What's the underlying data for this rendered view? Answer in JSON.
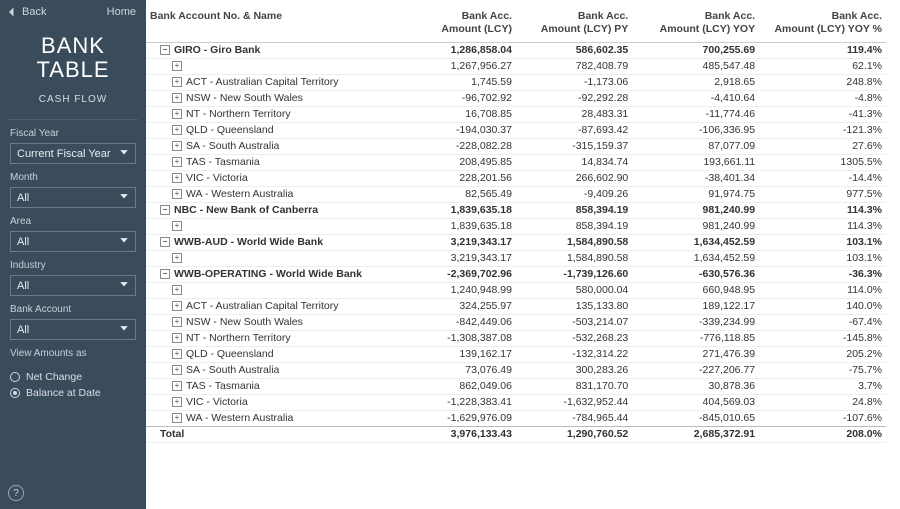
{
  "colors": {
    "sidebar_bg": "#3a4b5c"
  },
  "sidebar": {
    "back": "Back",
    "home": "Home",
    "title_line1": "BANK",
    "title_line2": "TABLE",
    "subtitle": "CASH FLOW",
    "filters": [
      {
        "label": "Fiscal Year",
        "value": "Current Fiscal Year"
      },
      {
        "label": "Month",
        "value": "All"
      },
      {
        "label": "Area",
        "value": "All"
      },
      {
        "label": "Industry",
        "value": "All"
      },
      {
        "label": "Bank Account",
        "value": "All"
      }
    ],
    "view_label": "View Amounts as",
    "view_options": [
      "Net Change",
      "Balance at Date"
    ],
    "view_selected": 1,
    "help": "?"
  },
  "table": {
    "columns": [
      "Bank Account No. & Name",
      "Bank Acc. Amount (LCY)",
      "Bank Acc. Amount (LCY) PY",
      "Bank Acc. Amount (LCY) YOY",
      "Bank Acc. Amount (LCY) YOY %"
    ],
    "col_widths": [
      "240px",
      "110px",
      "110px",
      "120px",
      "120px"
    ],
    "rows": [
      {
        "type": "section",
        "ctrl": "−",
        "name": "GIRO - Giro Bank",
        "v": [
          "1,286,858.04",
          "586,602.35",
          "700,255.69",
          "119.4%"
        ]
      },
      {
        "type": "row",
        "indent": 1,
        "ctrl": "+",
        "name": "",
        "v": [
          "1,267,956.27",
          "782,408.79",
          "485,547.48",
          "62.1%"
        ]
      },
      {
        "type": "row",
        "indent": 1,
        "ctrl": "+",
        "name": "ACT - Australian Capital Territory",
        "v": [
          "1,745.59",
          "-1,173.06",
          "2,918.65",
          "248.8%"
        ]
      },
      {
        "type": "row",
        "indent": 1,
        "ctrl": "+",
        "name": "NSW - New South Wales",
        "v": [
          "-96,702.92",
          "-92,292.28",
          "-4,410.64",
          "-4.8%"
        ]
      },
      {
        "type": "row",
        "indent": 1,
        "ctrl": "+",
        "name": "NT - Northern Territory",
        "v": [
          "16,708.85",
          "28,483.31",
          "-11,774.46",
          "-41.3%"
        ]
      },
      {
        "type": "row",
        "indent": 1,
        "ctrl": "+",
        "name": "QLD - Queensland",
        "v": [
          "-194,030.37",
          "-87,693.42",
          "-106,336.95",
          "-121.3%"
        ]
      },
      {
        "type": "row",
        "indent": 1,
        "ctrl": "+",
        "name": "SA - South Australia",
        "v": [
          "-228,082.28",
          "-315,159.37",
          "87,077.09",
          "27.6%"
        ]
      },
      {
        "type": "row",
        "indent": 1,
        "ctrl": "+",
        "name": "TAS - Tasmania",
        "v": [
          "208,495.85",
          "14,834.74",
          "193,661.11",
          "1305.5%"
        ]
      },
      {
        "type": "row",
        "indent": 1,
        "ctrl": "+",
        "name": "VIC - Victoria",
        "v": [
          "228,201.56",
          "266,602.90",
          "-38,401.34",
          "-14.4%"
        ]
      },
      {
        "type": "row",
        "indent": 1,
        "ctrl": "+",
        "name": "WA - Western Australia",
        "v": [
          "82,565.49",
          "-9,409.26",
          "91,974.75",
          "977.5%"
        ]
      },
      {
        "type": "section",
        "ctrl": "−",
        "name": "NBC - New Bank of Canberra",
        "v": [
          "1,839,635.18",
          "858,394.19",
          "981,240.99",
          "114.3%"
        ]
      },
      {
        "type": "row",
        "indent": 1,
        "ctrl": "+",
        "name": "",
        "v": [
          "1,839,635.18",
          "858,394.19",
          "981,240.99",
          "114.3%"
        ]
      },
      {
        "type": "section",
        "ctrl": "−",
        "name": "WWB-AUD - World Wide Bank",
        "v": [
          "3,219,343.17",
          "1,584,890.58",
          "1,634,452.59",
          "103.1%"
        ]
      },
      {
        "type": "row",
        "indent": 1,
        "ctrl": "+",
        "name": "",
        "v": [
          "3,219,343.17",
          "1,584,890.58",
          "1,634,452.59",
          "103.1%"
        ]
      },
      {
        "type": "section",
        "ctrl": "−",
        "name": "WWB-OPERATING - World Wide Bank",
        "v": [
          "-2,369,702.96",
          "-1,739,126.60",
          "-630,576.36",
          "-36.3%"
        ]
      },
      {
        "type": "row",
        "indent": 1,
        "ctrl": "+",
        "name": "",
        "v": [
          "1,240,948.99",
          "580,000.04",
          "660,948.95",
          "114.0%"
        ]
      },
      {
        "type": "row",
        "indent": 1,
        "ctrl": "+",
        "name": "ACT - Australian Capital Territory",
        "v": [
          "324,255.97",
          "135,133.80",
          "189,122.17",
          "140.0%"
        ]
      },
      {
        "type": "row",
        "indent": 1,
        "ctrl": "+",
        "name": "NSW - New South Wales",
        "v": [
          "-842,449.06",
          "-503,214.07",
          "-339,234.99",
          "-67.4%"
        ]
      },
      {
        "type": "row",
        "indent": 1,
        "ctrl": "+",
        "name": "NT - Northern Territory",
        "v": [
          "-1,308,387.08",
          "-532,268.23",
          "-776,118.85",
          "-145.8%"
        ]
      },
      {
        "type": "row",
        "indent": 1,
        "ctrl": "+",
        "name": "QLD - Queensland",
        "v": [
          "139,162.17",
          "-132,314.22",
          "271,476.39",
          "205.2%"
        ]
      },
      {
        "type": "row",
        "indent": 1,
        "ctrl": "+",
        "name": "SA - South Australia",
        "v": [
          "73,076.49",
          "300,283.26",
          "-227,206.77",
          "-75.7%"
        ]
      },
      {
        "type": "row",
        "indent": 1,
        "ctrl": "+",
        "name": "TAS - Tasmania",
        "v": [
          "862,049.06",
          "831,170.70",
          "30,878.36",
          "3.7%"
        ]
      },
      {
        "type": "row",
        "indent": 1,
        "ctrl": "+",
        "name": "VIC - Victoria",
        "v": [
          "-1,228,383.41",
          "-1,632,952.44",
          "404,569.03",
          "24.8%"
        ]
      },
      {
        "type": "row",
        "indent": 1,
        "ctrl": "+",
        "name": "WA - Western Australia",
        "v": [
          "-1,629,976.09",
          "-784,965.44",
          "-845,010.65",
          "-107.6%"
        ]
      },
      {
        "type": "total",
        "name": "Total",
        "v": [
          "3,976,133.43",
          "1,290,760.52",
          "2,685,372.91",
          "208.0%"
        ]
      }
    ]
  }
}
